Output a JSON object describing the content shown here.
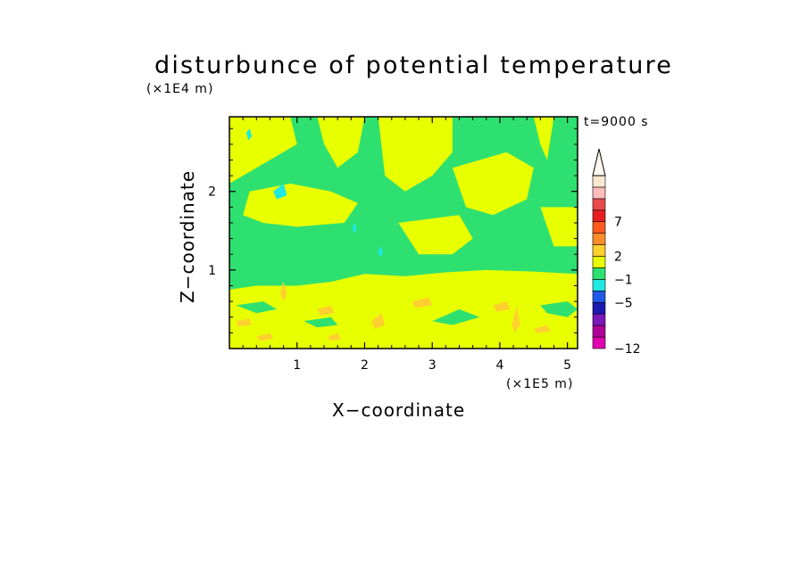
{
  "chart_data": {
    "type": "heatmap",
    "title": "disturbunce of potential temperature",
    "xlabel": "X−coordinate",
    "ylabel": "Z−coordinate",
    "x_multiplier": "(×1E5 m)",
    "y_multiplier": "(×1E4 m)",
    "time_label": "t=9000 s",
    "xlim": [
      0,
      5.15
    ],
    "ylim": [
      0,
      2.95
    ],
    "xticks": [
      1,
      2,
      3,
      4,
      5
    ],
    "xtick_labels": [
      "1",
      "2",
      "3",
      "4",
      "5"
    ],
    "yticks": [
      1,
      2
    ],
    "ytick_labels": [
      "1",
      "2"
    ],
    "colorbar": {
      "colors": [
        "#e000b0",
        "#b0009a",
        "#7a18b8",
        "#1a1ab0",
        "#1e5ae6",
        "#1ee8e0",
        "#2ee070",
        "#e8ff00",
        "#ffd02e",
        "#ff8c2a",
        "#ff5a1e",
        "#e81e1e",
        "#e84a4a",
        "#ffbcbc",
        "#f8e8d0"
      ],
      "labels": [
        "−12",
        "−5",
        "−1",
        "2",
        "7"
      ],
      "label_levels": [
        0,
        4,
        6,
        8,
        11
      ],
      "extend_top": true
    },
    "background_color": "#2ee070",
    "regions": [
      {
        "level": "yellow",
        "color": "#e8ff00",
        "points": [
          [
            0,
            0
          ],
          [
            5.15,
            0
          ],
          [
            5.15,
            0.95
          ],
          [
            4.5,
            0.98
          ],
          [
            3.8,
            1.0
          ],
          [
            3.2,
            0.97
          ],
          [
            2.6,
            0.92
          ],
          [
            2.0,
            0.95
          ],
          [
            1.5,
            0.85
          ],
          [
            1.0,
            0.8
          ],
          [
            0.4,
            0.8
          ],
          [
            0,
            0.75
          ]
        ]
      },
      {
        "level": "yellow",
        "color": "#e8ff00",
        "points": [
          [
            0,
            2.95
          ],
          [
            0.9,
            2.95
          ],
          [
            1.0,
            2.6
          ],
          [
            0.6,
            2.4
          ],
          [
            0.2,
            2.2
          ],
          [
            0,
            2.1
          ]
        ]
      },
      {
        "level": "yellow",
        "color": "#e8ff00",
        "points": [
          [
            0.3,
            2.0
          ],
          [
            0.9,
            2.1
          ],
          [
            1.5,
            2.0
          ],
          [
            1.9,
            1.85
          ],
          [
            1.7,
            1.6
          ],
          [
            1.0,
            1.55
          ],
          [
            0.5,
            1.6
          ],
          [
            0.2,
            1.7
          ]
        ]
      },
      {
        "level": "yellow",
        "color": "#e8ff00",
        "points": [
          [
            1.3,
            2.95
          ],
          [
            2.0,
            2.95
          ],
          [
            1.9,
            2.5
          ],
          [
            1.6,
            2.3
          ],
          [
            1.4,
            2.6
          ]
        ]
      },
      {
        "level": "yellow",
        "color": "#e8ff00",
        "points": [
          [
            2.2,
            2.95
          ],
          [
            3.3,
            2.95
          ],
          [
            3.3,
            2.5
          ],
          [
            3.0,
            2.2
          ],
          [
            2.6,
            2.0
          ],
          [
            2.3,
            2.2
          ]
        ]
      },
      {
        "level": "yellow",
        "color": "#e8ff00",
        "points": [
          [
            2.5,
            1.6
          ],
          [
            3.4,
            1.7
          ],
          [
            3.6,
            1.4
          ],
          [
            3.3,
            1.2
          ],
          [
            2.8,
            1.2
          ]
        ]
      },
      {
        "level": "yellow",
        "color": "#e8ff00",
        "points": [
          [
            3.3,
            2.3
          ],
          [
            4.1,
            2.5
          ],
          [
            4.5,
            2.3
          ],
          [
            4.4,
            1.9
          ],
          [
            3.9,
            1.7
          ],
          [
            3.5,
            1.8
          ]
        ]
      },
      {
        "level": "yellow",
        "color": "#e8ff00",
        "points": [
          [
            4.5,
            2.95
          ],
          [
            4.8,
            2.95
          ],
          [
            4.7,
            2.4
          ],
          [
            4.6,
            2.6
          ]
        ]
      },
      {
        "level": "yellow",
        "color": "#e8ff00",
        "points": [
          [
            4.6,
            1.8
          ],
          [
            5.15,
            1.8
          ],
          [
            5.15,
            1.3
          ],
          [
            4.8,
            1.3
          ]
        ]
      },
      {
        "level": "green",
        "color": "#2ee070",
        "points": [
          [
            0.1,
            0.55
          ],
          [
            0.5,
            0.6
          ],
          [
            0.7,
            0.5
          ],
          [
            0.4,
            0.45
          ]
        ]
      },
      {
        "level": "green",
        "color": "#2ee070",
        "points": [
          [
            3.0,
            0.35
          ],
          [
            3.4,
            0.5
          ],
          [
            3.7,
            0.4
          ],
          [
            3.3,
            0.3
          ]
        ]
      },
      {
        "level": "green",
        "color": "#2ee070",
        "points": [
          [
            4.6,
            0.55
          ],
          [
            5.0,
            0.6
          ],
          [
            5.15,
            0.5
          ],
          [
            5.0,
            0.4
          ],
          [
            4.7,
            0.45
          ]
        ]
      },
      {
        "level": "green",
        "color": "#2ee070",
        "points": [
          [
            1.1,
            0.35
          ],
          [
            1.5,
            0.4
          ],
          [
            1.6,
            0.3
          ],
          [
            1.3,
            0.27
          ]
        ]
      },
      {
        "level": "orange",
        "color": "#ffd02e",
        "points": [
          [
            0.4,
            0.15
          ],
          [
            0.6,
            0.2
          ],
          [
            0.65,
            0.12
          ],
          [
            0.45,
            0.1
          ]
        ]
      },
      {
        "level": "orange",
        "color": "#ffd02e",
        "points": [
          [
            1.3,
            0.5
          ],
          [
            1.5,
            0.55
          ],
          [
            1.55,
            0.45
          ],
          [
            1.35,
            0.42
          ]
        ]
      },
      {
        "level": "orange",
        "color": "#ffd02e",
        "points": [
          [
            2.7,
            0.6
          ],
          [
            2.95,
            0.65
          ],
          [
            3.0,
            0.55
          ],
          [
            2.75,
            0.52
          ]
        ]
      },
      {
        "level": "orange",
        "color": "#ffd02e",
        "points": [
          [
            1.45,
            0.15
          ],
          [
            1.6,
            0.2
          ],
          [
            1.65,
            0.12
          ],
          [
            1.5,
            0.1
          ]
        ]
      },
      {
        "level": "orange",
        "color": "#ffd02e",
        "points": [
          [
            4.5,
            0.25
          ],
          [
            4.7,
            0.3
          ],
          [
            4.75,
            0.22
          ],
          [
            4.55,
            0.2
          ]
        ]
      },
      {
        "level": "orange",
        "color": "#ffd02e",
        "points": [
          [
            0.1,
            0.35
          ],
          [
            0.3,
            0.38
          ],
          [
            0.32,
            0.3
          ],
          [
            0.12,
            0.28
          ]
        ]
      },
      {
        "level": "orange",
        "color": "#ffd02e",
        "points": [
          [
            3.9,
            0.55
          ],
          [
            4.1,
            0.6
          ],
          [
            4.15,
            0.5
          ],
          [
            3.95,
            0.47
          ]
        ]
      },
      {
        "level": "orange",
        "color": "#ffd02e",
        "points": [
          [
            2.1,
            0.35
          ],
          [
            2.25,
            0.45
          ],
          [
            2.3,
            0.3
          ],
          [
            2.15,
            0.25
          ]
        ]
      },
      {
        "level": "orange",
        "color": "#ffd02e",
        "points": [
          [
            4.18,
            0.3
          ],
          [
            4.25,
            0.55
          ],
          [
            4.3,
            0.3
          ],
          [
            4.22,
            0.2
          ]
        ]
      },
      {
        "level": "orange",
        "color": "#ffd02e",
        "points": [
          [
            0.75,
            0.7
          ],
          [
            0.8,
            0.85
          ],
          [
            0.85,
            0.7
          ],
          [
            0.8,
            0.6
          ]
        ]
      },
      {
        "level": "cyan",
        "color": "#1ee8e0",
        "points": [
          [
            0.25,
            2.75
          ],
          [
            0.3,
            2.8
          ],
          [
            0.33,
            2.7
          ],
          [
            0.28,
            2.65
          ]
        ]
      },
      {
        "level": "cyan",
        "color": "#1ee8e0",
        "points": [
          [
            0.65,
            2.0
          ],
          [
            0.8,
            2.1
          ],
          [
            0.85,
            1.95
          ],
          [
            0.7,
            1.9
          ]
        ]
      },
      {
        "level": "cyan",
        "color": "#1ee8e0",
        "points": [
          [
            1.82,
            1.55
          ],
          [
            1.86,
            1.6
          ],
          [
            1.88,
            1.5
          ],
          [
            1.84,
            1.47
          ]
        ]
      },
      {
        "level": "cyan",
        "color": "#1ee8e0",
        "points": [
          [
            2.2,
            1.25
          ],
          [
            2.25,
            1.3
          ],
          [
            2.27,
            1.2
          ],
          [
            2.22,
            1.17
          ]
        ]
      }
    ]
  }
}
